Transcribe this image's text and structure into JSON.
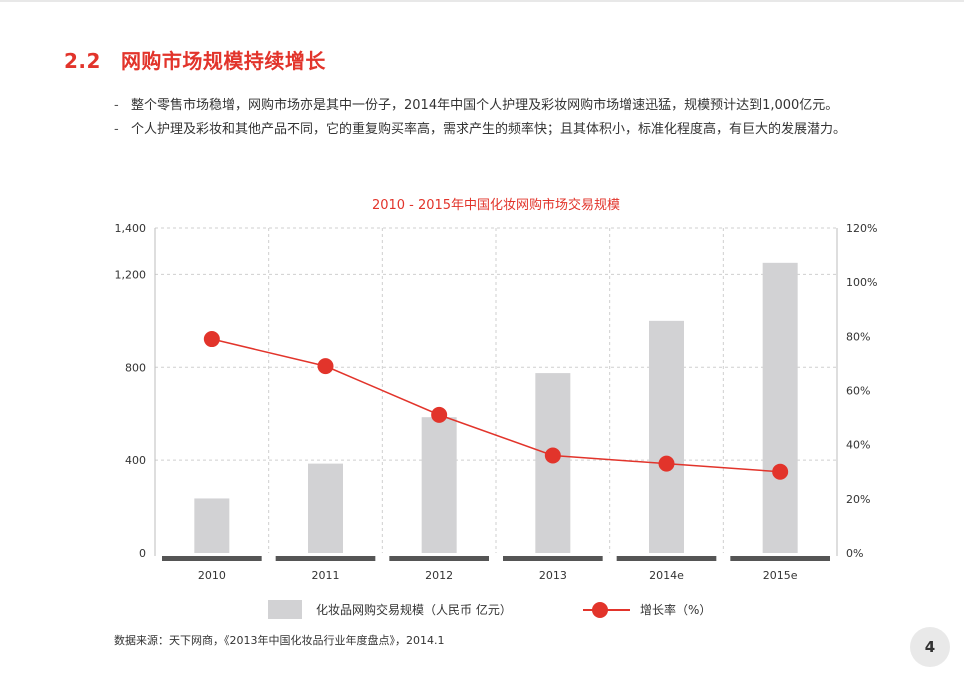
{
  "section": {
    "number": "2.2",
    "title": "网购市场规模持续增长"
  },
  "bullets": [
    "整个零售市场稳增，网购市场亦是其中一份子，2014年中国个人护理及彩妆网购市场增速迅猛，规模预计达到1,000亿元。",
    "个人护理及彩妆和其他产品不同，它的重复购买率高，需求产生的频率快；且其体积小，标准化程度高，有巨大的发展潜力。"
  ],
  "chart_data": {
    "type": "bar",
    "title": "2010 - 2015年中国化妆网购市场交易规模",
    "categories": [
      "2010",
      "2011",
      "2012",
      "2013",
      "2014e",
      "2015e"
    ],
    "series": [
      {
        "name": "化妆品网购交易规模（人民币 亿元）",
        "type": "bar",
        "axis": "left",
        "color": "#d2d2d4",
        "values": [
          235,
          385,
          585,
          775,
          1000,
          1250
        ]
      },
      {
        "name": "增长率（%）",
        "type": "line",
        "axis": "right",
        "color": "#e2342b",
        "values": [
          79,
          69,
          51,
          36,
          33,
          30
        ]
      }
    ],
    "y_left": {
      "min": 0,
      "max": 1400,
      "ticks": [
        0,
        400,
        800,
        1200,
        1400
      ],
      "tick_labels": [
        "0",
        "400",
        "800",
        "1,200",
        "1,400"
      ]
    },
    "y_right": {
      "min": 0,
      "max": 120,
      "ticks": [
        0,
        20,
        40,
        60,
        80,
        100,
        120
      ],
      "tick_labels": [
        "0%",
        "20%",
        "40%",
        "60%",
        "80%",
        "100%",
        "120%"
      ]
    },
    "legend_placement": "bottom",
    "grid": true,
    "colors": {
      "title": "#e2342b",
      "bar": "#d2d2d4",
      "line": "#e2342b",
      "axis_band": "#555555"
    }
  },
  "source": "数据来源：天下网商，《2013年中国化妆品行业年度盘点》，2014.1",
  "page_number": "4"
}
